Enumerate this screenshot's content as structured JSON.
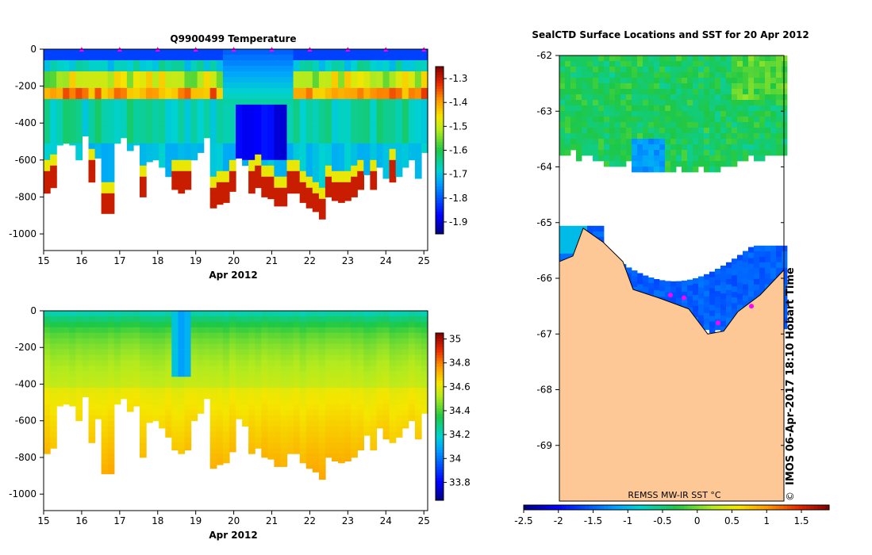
{
  "chart_data": [
    {
      "type": "heatmap",
      "title": "Q9900499  Temperature",
      "xlabel": "Apr 2012",
      "ylabel": "",
      "x_ticks": [
        "15",
        "16",
        "17",
        "18",
        "19",
        "20",
        "21",
        "22",
        "23",
        "24",
        "25"
      ],
      "y_ticks": [
        "0",
        "-200",
        "-400",
        "-600",
        "-800",
        "-1000"
      ],
      "xlim": [
        15,
        25.1
      ],
      "ylim": [
        -1090,
        0
      ],
      "colorbar": {
        "min": -1.95,
        "max": -1.25,
        "ticks": [
          "-1.3",
          "-1.4",
          "-1.5",
          "-1.6",
          "-1.7",
          "-1.8",
          "-1.9"
        ]
      },
      "surface_markers_days": [
        16,
        17,
        18,
        19,
        20,
        21,
        22,
        23,
        24,
        25
      ],
      "profile_max_depths": [
        -780,
        -750,
        -520,
        -510,
        -520,
        -600,
        -470,
        -720,
        -590,
        -890,
        -890,
        -510,
        -480,
        -550,
        -520,
        -800,
        -610,
        -600,
        -640,
        -690,
        -760,
        -780,
        -760,
        -600,
        -560,
        -480,
        -860,
        -840,
        -830,
        -770,
        -590,
        -630,
        -780,
        -750,
        -800,
        -810,
        -850,
        -850,
        -780,
        -780,
        -830,
        -860,
        -880,
        -920,
        -800,
        -820,
        -830,
        -820,
        -800,
        -760,
        -680,
        -760,
        -640,
        -700,
        -720,
        -690,
        -640,
        -600,
        -700,
        -560
      ]
    },
    {
      "type": "heatmap",
      "title": "",
      "xlabel": "Apr 2012",
      "ylabel": "",
      "x_ticks": [
        "15",
        "16",
        "17",
        "18",
        "19",
        "20",
        "21",
        "22",
        "23",
        "24",
        "25"
      ],
      "y_ticks": [
        "0",
        "-200",
        "-400",
        "-600",
        "-800",
        "-1000"
      ],
      "xlim": [
        15,
        25.1
      ],
      "ylim": [
        -1090,
        0
      ],
      "colorbar": {
        "min": 33.65,
        "max": 35.05,
        "ticks": [
          "35",
          "34.8",
          "34.6",
          "34.4",
          "34.2",
          "34",
          "33.8"
        ]
      }
    },
    {
      "type": "heatmap",
      "title": "SealCTD Surface Locations and SST for 20 Apr 2012",
      "y_ticks": [
        "-62",
        "-63",
        "-64",
        "-65",
        "-66",
        "-67",
        "-68",
        "-69"
      ],
      "ylim": [
        -70,
        -62
      ],
      "colorbar_label": "REMSS MW-IR SST °C",
      "colorbar": {
        "min": -2.5,
        "max": 1.9,
        "ticks": [
          "-2.5",
          "-2",
          "-1.5",
          "-1",
          "-0.5",
          "0",
          "0.5",
          "1",
          "1.5"
        ]
      },
      "annotation": "IMOS 06-Apr-2017 18:10 Hobart Time",
      "copyright": "©"
    }
  ]
}
